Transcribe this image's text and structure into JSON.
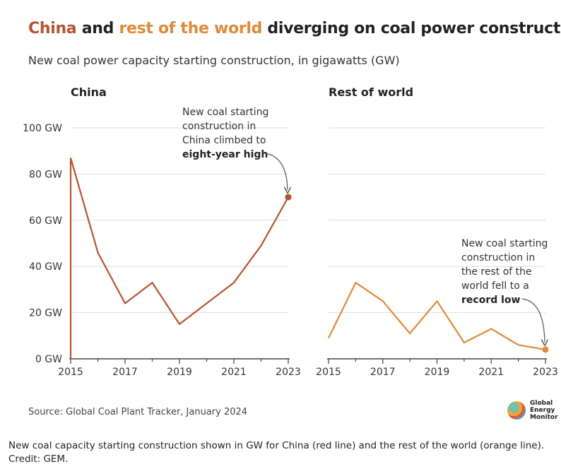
{
  "title": {
    "part1": "China",
    "part2": " and ",
    "part3": "rest of the world",
    "part4": " diverging on coal power construction"
  },
  "subtitle": "New coal power capacity starting construction, in gigawatts (GW)",
  "source": "Source: Global Coal Plant Tracker, January 2024",
  "logo": {
    "line1": "Global",
    "line2": "Energy",
    "line3": "Monitor"
  },
  "caption": "New coal capacity starting construction shown in GW for China (red line) and the rest of the world (orange line). Credit: GEM.",
  "colors": {
    "china": "#b5532f",
    "rest_of_world": "#e08a3a",
    "grid": "#dddddd"
  },
  "chart_data": [
    {
      "type": "line",
      "title": "China",
      "x": [
        2015,
        2016,
        2017,
        2018,
        2019,
        2020,
        2021,
        2022,
        2023
      ],
      "xticks": [
        "2015",
        "2017",
        "2019",
        "2021",
        "2023"
      ],
      "yticks": [
        "0 GW",
        "20 GW",
        "40 GW",
        "60 GW",
        "80 GW",
        "100 GW"
      ],
      "ylim": [
        0,
        100
      ],
      "series": [
        {
          "values": [
            87,
            46,
            24,
            33,
            15,
            24,
            33,
            49,
            70
          ]
        }
      ],
      "annotation": {
        "lines": [
          "New coal starting",
          "construction in",
          "China climbed to"
        ],
        "bold": "eight-year high"
      }
    },
    {
      "type": "line",
      "title": "Rest of world",
      "x": [
        2015,
        2016,
        2017,
        2018,
        2019,
        2020,
        2021,
        2022,
        2023
      ],
      "xticks": [
        "2015",
        "2017",
        "2019",
        "2021",
        "2023"
      ],
      "ylim": [
        0,
        100
      ],
      "series": [
        {
          "values": [
            9,
            33,
            25,
            11,
            25,
            7,
            13,
            6,
            4
          ]
        }
      ],
      "annotation": {
        "lines": [
          "New coal starting",
          "construction in",
          "the rest of the",
          "world fell to a"
        ],
        "bold": "record low"
      }
    }
  ]
}
